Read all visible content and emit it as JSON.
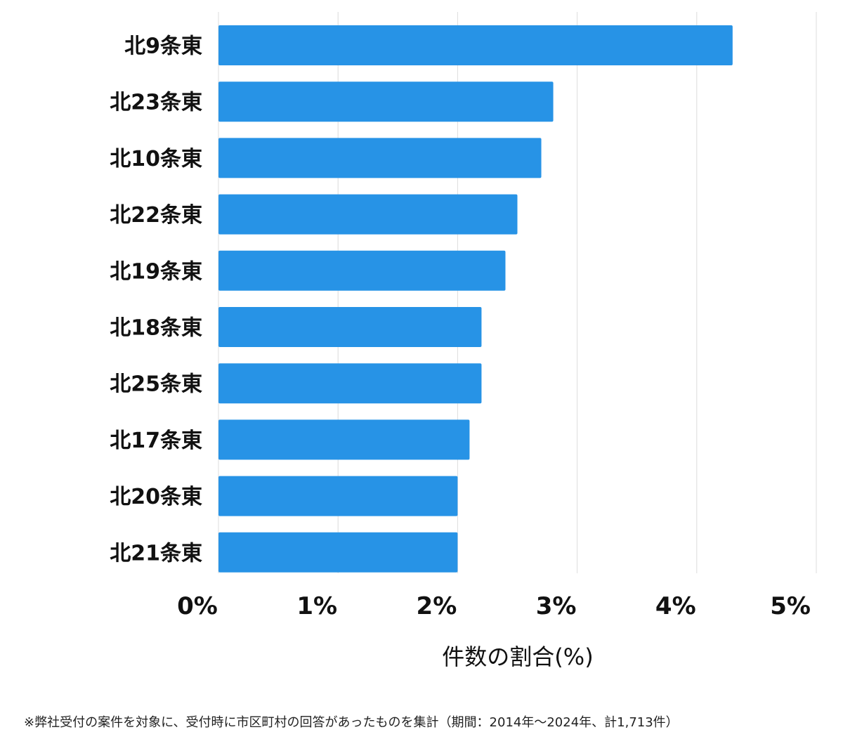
{
  "chart_data": {
    "type": "bar",
    "orientation": "horizontal",
    "categories": [
      "北9条東",
      "北23条東",
      "北10条東",
      "北22条東",
      "北19条東",
      "北18条東",
      "北25条東",
      "北17条東",
      "北20条東",
      "北21条東"
    ],
    "values": [
      4.3,
      2.8,
      2.7,
      2.5,
      2.4,
      2.2,
      2.2,
      2.1,
      2.0,
      2.0
    ],
    "xlim": [
      0,
      5
    ],
    "xticks": [
      "0%",
      "1%",
      "2%",
      "3%",
      "4%",
      "5%"
    ],
    "xlabel": "件数の割合(%)",
    "ylabel": "",
    "title": "",
    "grid": "vertical",
    "bar_color": "#2793e6"
  },
  "footnote": "※弊社受付の案件を対象に、受付時に市区町村の回答があったものを集計（期間：2014年～2024年、計1,713件）"
}
